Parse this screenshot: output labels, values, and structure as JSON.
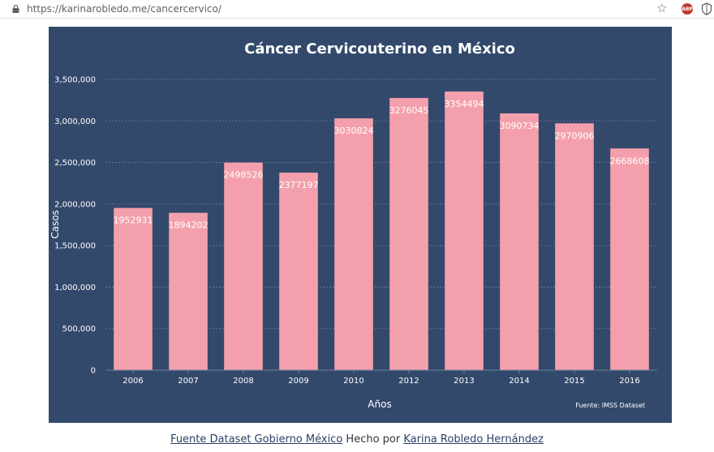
{
  "browser": {
    "url": "https://karinarobledo.me/cancercervico/"
  },
  "icons": {
    "lock": "lock-icon",
    "bookmark": "star-icon",
    "adblock": "abp-icon",
    "extension": "shield-icon"
  },
  "extensions": {
    "abp_label": "ABP"
  },
  "chart_data": {
    "type": "bar",
    "title": "Cáncer Cervicouterino en México",
    "xlabel": "Años",
    "ylabel": "Casos",
    "categories": [
      "2006",
      "2007",
      "2008",
      "2009",
      "2010",
      "2012",
      "2013",
      "2014",
      "2015",
      "2016"
    ],
    "values": [
      1952931,
      1894202,
      2498526,
      2377197,
      3030824,
      3276045,
      3354494,
      3090734,
      2970906,
      2668608
    ],
    "ylim": [
      0,
      3500000
    ],
    "yticks": [
      0,
      500000,
      1000000,
      1500000,
      2000000,
      2500000,
      3000000,
      3500000
    ],
    "ytick_labels": [
      "0",
      "500,000",
      "1,000,000",
      "1,500,000",
      "2,000,000",
      "2,500,000",
      "3,000,000",
      "3,500,000"
    ],
    "source_note": "Fuente: IMSS Dataset",
    "grid": true,
    "colors": {
      "background": "#33496b",
      "bar": "#f4a0ac",
      "text": "#ffffff",
      "grid": "#6b7e9c"
    }
  },
  "footer": {
    "source_link": "Fuente Dataset Gobierno México",
    "made_by": "Hecho por",
    "author_link": "Karina Robledo Hernández"
  }
}
